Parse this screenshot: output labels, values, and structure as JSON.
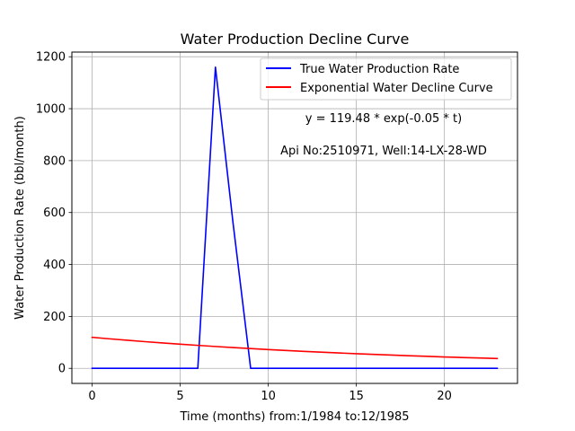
{
  "chart_data": {
    "type": "line",
    "title": "Water Production Decline Curve",
    "xlabel": "Time (months) from:1/1984 to:12/1985",
    "ylabel": "Water Production Rate (bbl/month)",
    "xlim": [
      -1.15,
      24.15
    ],
    "ylim": [
      -58,
      1218
    ],
    "xticks": [
      0,
      5,
      10,
      15,
      20
    ],
    "yticks": [
      0,
      200,
      400,
      600,
      800,
      1000,
      1200
    ],
    "grid": true,
    "legend_position": "top-right",
    "series": [
      {
        "name": "True Water Production Rate",
        "color": "#0000ff",
        "x": [
          0,
          1,
          2,
          3,
          4,
          5,
          6,
          7,
          8,
          9,
          10,
          11,
          12,
          13,
          14,
          15,
          16,
          17,
          18,
          19,
          20,
          21,
          22,
          23
        ],
        "y": [
          0,
          0,
          0,
          0,
          0,
          0,
          0,
          1160,
          560,
          0,
          0,
          0,
          0,
          0,
          0,
          0,
          0,
          0,
          0,
          0,
          0,
          0,
          0,
          0
        ]
      },
      {
        "name": "Exponential Water Decline Curve",
        "color": "#ff0000",
        "x": [
          0,
          1,
          2,
          3,
          4,
          5,
          6,
          7,
          8,
          9,
          10,
          11,
          12,
          13,
          14,
          15,
          16,
          17,
          18,
          19,
          20,
          21,
          22,
          23
        ],
        "y": [
          119.48,
          113.65,
          108.11,
          102.84,
          97.82,
          93.05,
          88.51,
          84.19,
          80.09,
          76.18,
          72.47,
          68.93,
          65.57,
          62.37,
          59.33,
          56.44,
          53.68,
          51.07,
          48.58,
          46.21,
          43.95,
          41.81,
          39.77,
          37.83
        ]
      }
    ],
    "annotations": [
      "y = 119.48 * exp(-0.05 * t)",
      "Api No:2510971, Well:14-LX-28-WD"
    ]
  }
}
